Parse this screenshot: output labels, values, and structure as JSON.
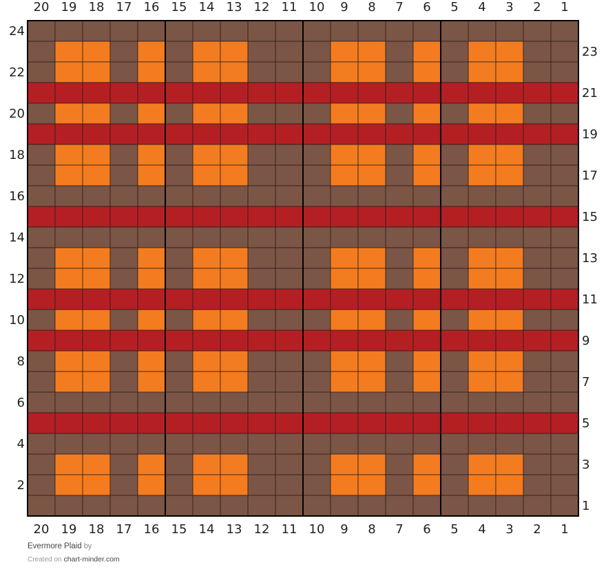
{
  "chart": {
    "title": "Evermore Plaid",
    "by_text": "by",
    "created_text": "Created on",
    "site_link": "chart-minder.com",
    "columns": 20,
    "rows": 24,
    "column_numbers": [
      "20",
      "19",
      "18",
      "17",
      "16",
      "15",
      "14",
      "13",
      "12",
      "11",
      "10",
      "9",
      "8",
      "7",
      "6",
      "5",
      "4",
      "3",
      "2",
      "1"
    ],
    "even_row_labels": [
      "24",
      "22",
      "20",
      "18",
      "16",
      "14",
      "12",
      "10",
      "8",
      "6",
      "4",
      "2"
    ],
    "odd_row_labels": [
      "23",
      "21",
      "19",
      "17",
      "15",
      "13",
      "11",
      "9",
      "7",
      "5",
      "3",
      "1"
    ],
    "colors": {
      "B": "#7b5546",
      "O": "#f47c20",
      "R": "#b41f24",
      "grid_line": "#2e1d17",
      "major_line": "#000000"
    },
    "major_grid_every": 5,
    "pattern_rows_top_to_bottom": [
      "BBBBBBBBBBBBBBBBBBBB",
      "BOOBOBOOBBBOOBOBOOBB",
      "BOOBOBOOBBBOOBOBOOBB",
      "RRRRRRRRRRRRRRRRRRRR",
      "BOOBOBOOBBBOOBOBOOBB",
      "RRRRRRRRRRRRRRRRRRRR",
      "BOOBOBOOBBBOOBOBOOBB",
      "BOOBOBOOBBBOOBOBOOBB",
      "BBBBBBBBBBBBBBBBBBBB",
      "RRRRRRRRRRRRRRRRRRRR",
      "BBBBBBBBBBBBBBBBBBBB",
      "BOOBOBOOBBBOOBOBOOBB",
      "BOOBOBOOBBBOOBOBOOBB",
      "RRRRRRRRRRRRRRRRRRRR",
      "BOOBOBOOBBBOOBOBOOBB",
      "RRRRRRRRRRRRRRRRRRRR",
      "BOOBOBOOBBBOOBOBOOBB",
      "BOOBOBOOBBBOOBOBOOBB",
      "BBBBBBBBBBBBBBBBBBBB",
      "RRRRRRRRRRRRRRRRRRRR",
      "BBBBBBBBBBBBBBBBBBBB",
      "BOOBOBOOBBBOOBOBOOBB",
      "BOOBOBOOBBBOOBOBOOBB",
      "BBBBBBBBBBBBBBBBBBBB"
    ]
  }
}
